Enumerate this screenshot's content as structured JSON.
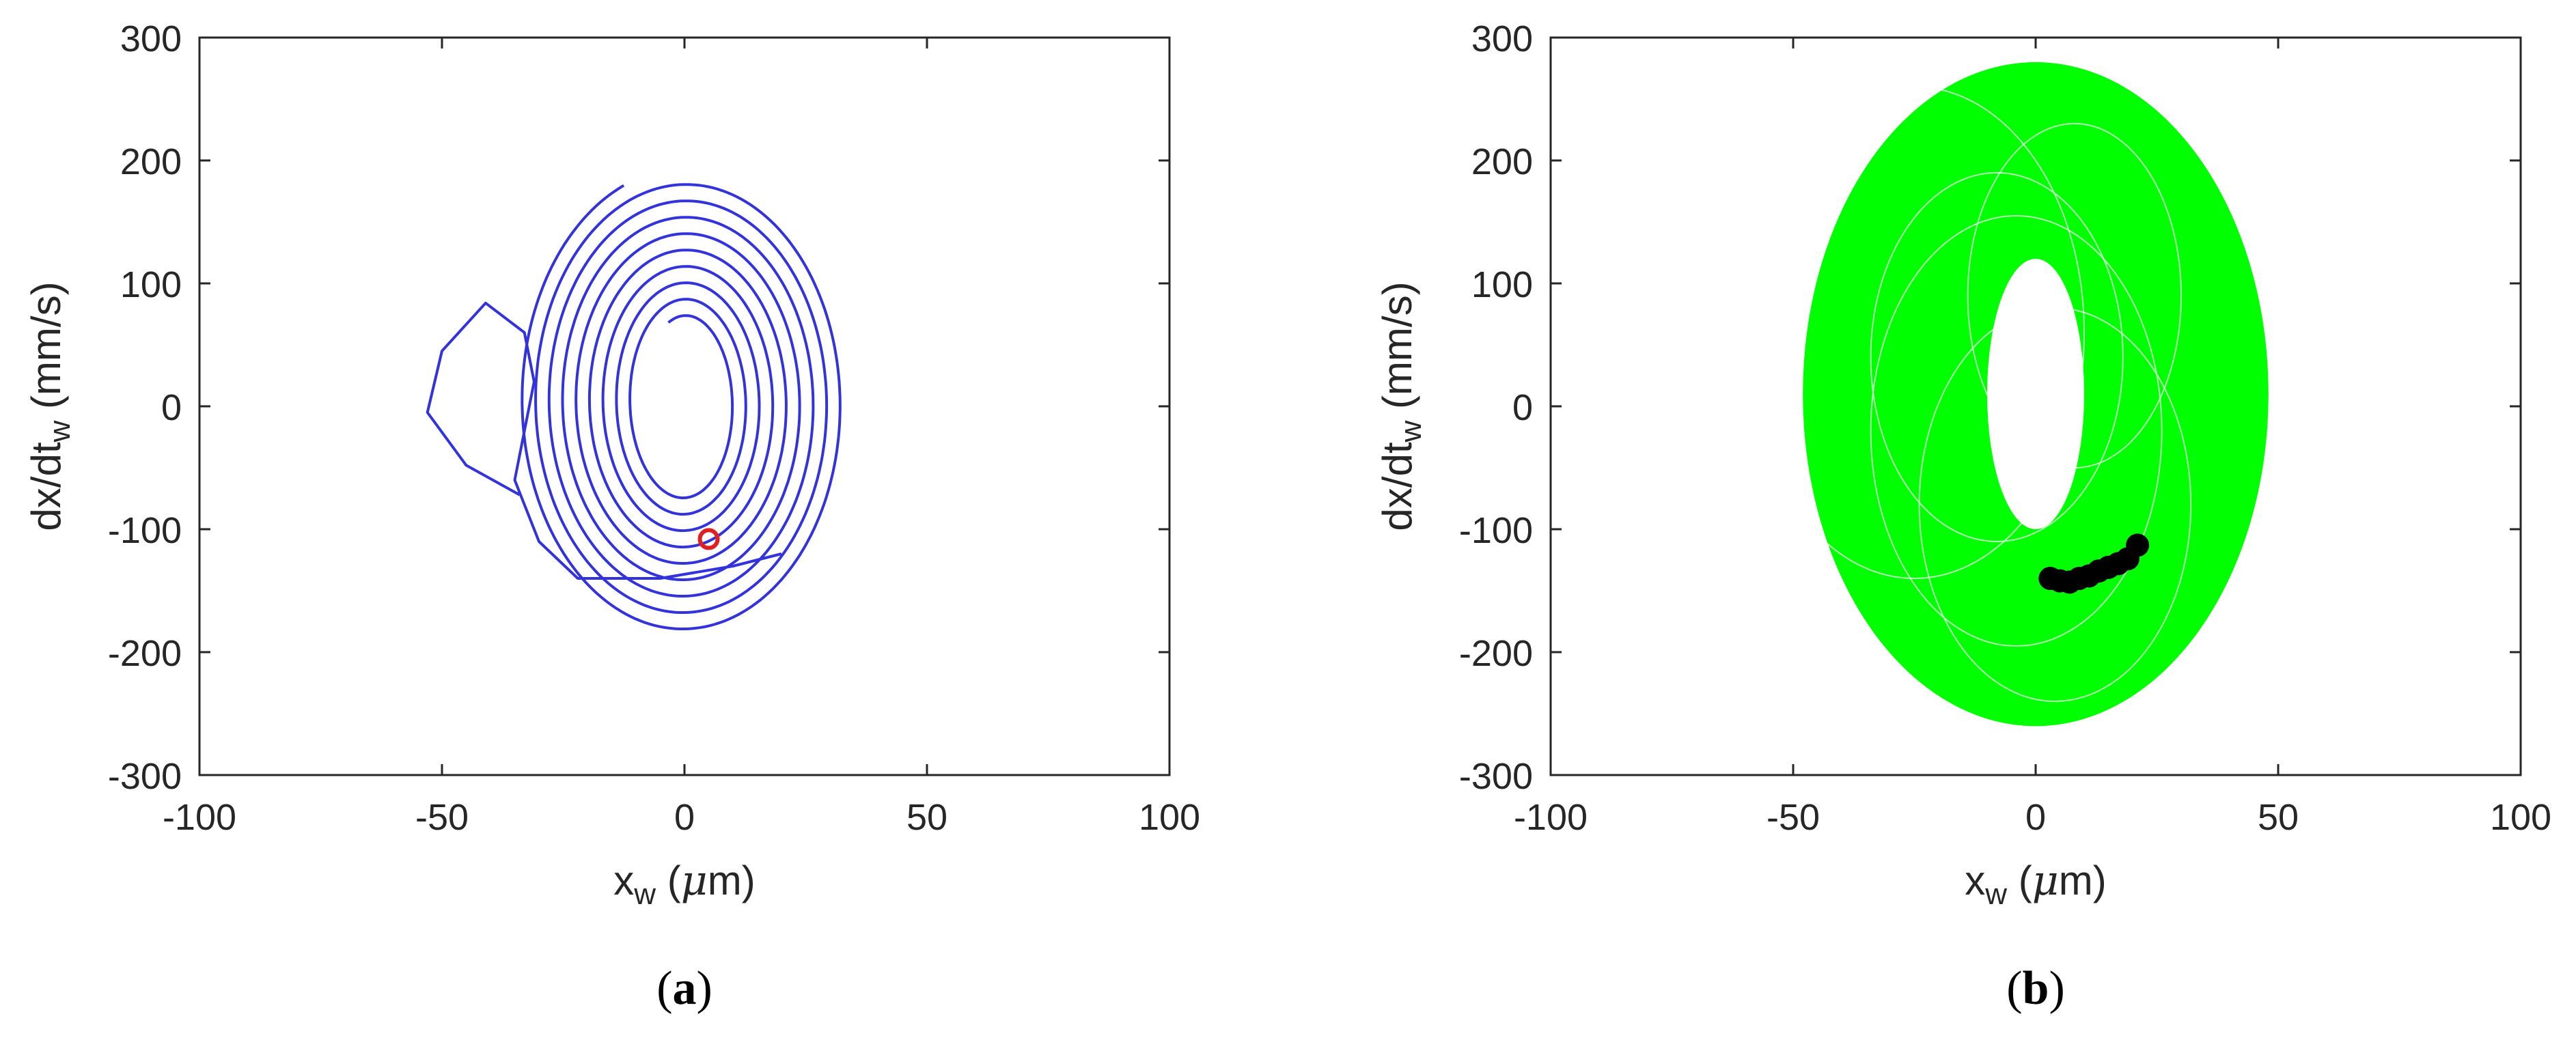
{
  "chart_data": [
    {
      "type": "line",
      "panel_label": "a",
      "xlabel": {
        "main": "x",
        "sub": "w",
        "unit_open": " (",
        "unit_mu": "μ",
        "unit_rest": "m)"
      },
      "ylabel": {
        "main": "dx/dt",
        "sub": "w",
        "unit": " (mm/s)"
      },
      "xlim": [
        -100,
        100
      ],
      "ylim": [
        -300,
        300
      ],
      "xticks": [
        "-100",
        "-50",
        "0",
        "50",
        "100"
      ],
      "yticks": [
        "300",
        "200",
        "100",
        "0",
        "-100",
        "-200",
        "-300"
      ],
      "grid": false,
      "colors": {
        "trajectory": "#3333dd",
        "marker": "#e02020"
      },
      "series": [
        {
          "style": "thin spiral trajectory",
          "spiral": {
            "center": [
              0,
              3
            ],
            "rx_outer": 34,
            "rx_inner": 9,
            "ry_outer": 190,
            "ry_inner": 70,
            "loops": 9
          },
          "extra_loop": [
            [
              -34,
              -72
            ],
            [
              -45,
              -48
            ],
            [
              -53,
              -5
            ],
            [
              -50,
              45
            ],
            [
              -41,
              84
            ],
            [
              -33,
              60
            ],
            [
              -31,
              20
            ],
            [
              -35,
              -60
            ],
            [
              -30,
              -110
            ],
            [
              -22,
              -140
            ],
            [
              -5,
              -140
            ],
            [
              10,
              -130
            ],
            [
              20,
              -120
            ]
          ]
        },
        {
          "style": "marker",
          "points": [
            [
              5,
              -108
            ]
          ]
        }
      ]
    },
    {
      "type": "line",
      "panel_label": "b",
      "xlabel": {
        "main": "x",
        "sub": "w",
        "unit_open": " (",
        "unit_mu": "μ",
        "unit_rest": "m)"
      },
      "ylabel": {
        "main": "dx/dt",
        "sub": "w",
        "unit": " (mm/s)"
      },
      "xlim": [
        -100,
        100
      ],
      "ylim": [
        -300,
        300
      ],
      "xticks": [
        "-100",
        "-50",
        "0",
        "50",
        "100"
      ],
      "yticks": [
        "300",
        "200",
        "100",
        "0",
        "-100",
        "-200",
        "-300"
      ],
      "grid": false,
      "colors": {
        "trajectory": "#00ff00",
        "poincare": "#000000"
      },
      "series": [
        {
          "style": "dense green attractor band",
          "outer_rx": 48,
          "inner_rx": 10,
          "outer_ry": 270,
          "inner_ry": 110,
          "center": [
            0,
            10
          ]
        },
        {
          "style": "black poincare points",
          "points": [
            [
              3,
              -140
            ],
            [
              5,
              -142
            ],
            [
              7,
              -143
            ],
            [
              9,
              -140
            ],
            [
              11,
              -138
            ],
            [
              13,
              -134
            ],
            [
              15,
              -131
            ],
            [
              17,
              -128
            ],
            [
              19,
              -124
            ],
            [
              21,
              -113
            ]
          ]
        }
      ]
    }
  ],
  "captions": {
    "a": {
      "open": "(",
      "letter": "a",
      "close": ")"
    },
    "b": {
      "open": "(",
      "letter": "b",
      "close": ")"
    }
  }
}
